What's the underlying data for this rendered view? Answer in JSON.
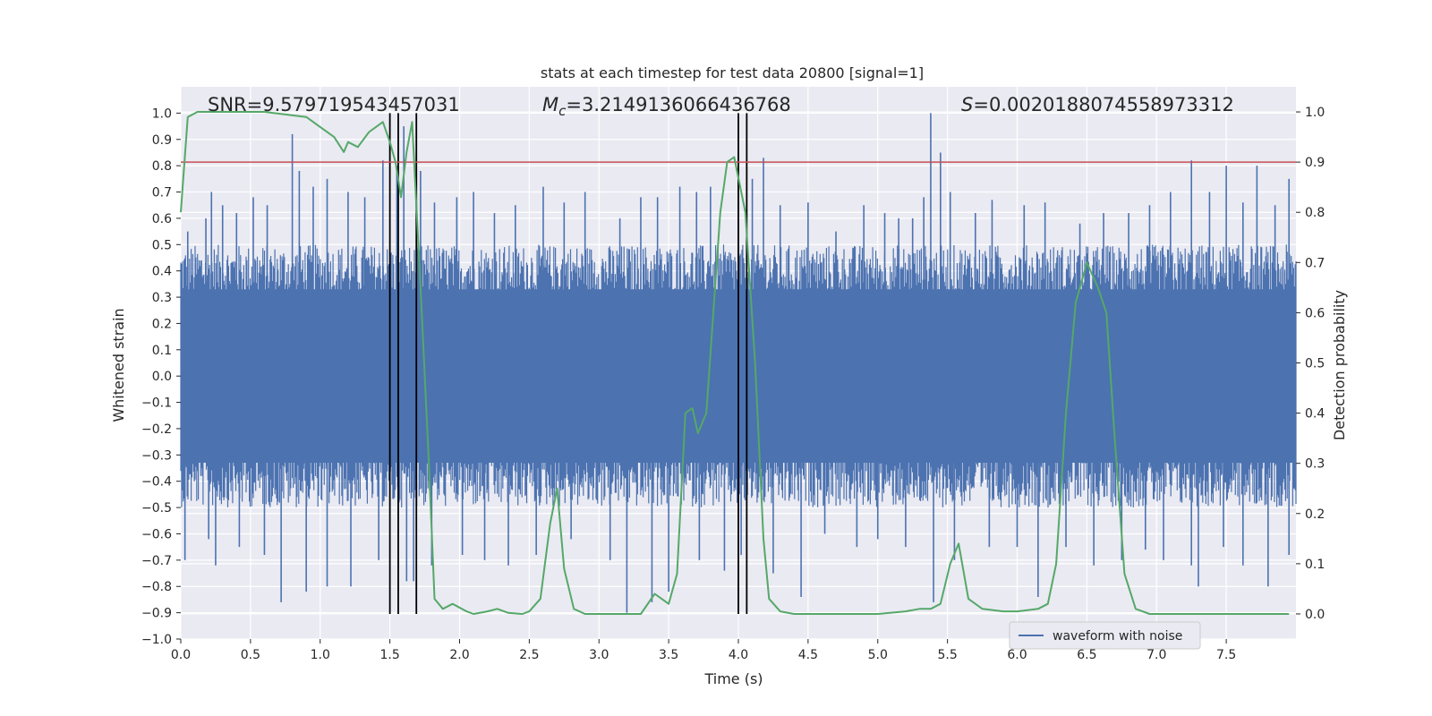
{
  "chart_data": {
    "type": "line",
    "title": "stats at each timestep for test data 20800 [signal=1]",
    "xlabel": "Time (s)",
    "ylabel_left": "Whitened strain",
    "ylabel_right": "Detection probability",
    "xlim": [
      0.0,
      8.0
    ],
    "ylim_left": [
      -1.0,
      1.1
    ],
    "ylim_right": [
      -0.05,
      1.05
    ],
    "x_ticks": [
      "0.0",
      "0.5",
      "1.0",
      "1.5",
      "2.0",
      "2.5",
      "3.0",
      "3.5",
      "4.0",
      "4.5",
      "5.0",
      "5.5",
      "6.0",
      "6.5",
      "7.0",
      "7.5"
    ],
    "y_left_ticks": [
      "1.0",
      "0.9",
      "0.8",
      "0.7",
      "0.6",
      "0.5",
      "0.4",
      "0.3",
      "0.2",
      "0.1",
      "0.0",
      "−0.1",
      "−0.2",
      "−0.3",
      "−0.4",
      "−0.5",
      "−0.6",
      "−0.7",
      "−0.8",
      "−0.9",
      "−1.0"
    ],
    "y_right_ticks": [
      "1.0",
      "0.9",
      "0.8",
      "0.7",
      "0.6",
      "0.5",
      "0.4",
      "0.3",
      "0.2",
      "0.1",
      "0.0"
    ],
    "annotations": {
      "snr": "SNR=9.579719543457031",
      "mc_symbol": "M",
      "mc_sub": "c",
      "mc_value": "=3.2149136066436768",
      "s_symbol": "S",
      "s_value": "=0.0020188074558973312"
    },
    "threshold": {
      "value": 0.9,
      "axis": "right",
      "color": "#c44e52"
    },
    "event_lines": [
      1.5,
      1.56,
      1.69,
      4.0,
      4.06
    ],
    "legend": {
      "label": "waveform with noise",
      "placement": "lower-right"
    },
    "series": [
      {
        "name": "waveform with noise",
        "axis": "left",
        "color": "#4c72b0",
        "noise_envelope": {
          "x_start": 0.0,
          "x_end": 8.0,
          "typical_amplitude": 0.4,
          "max_amplitude": 1.0
        },
        "peaks_positive": [
          [
            0.05,
            0.55
          ],
          [
            0.18,
            0.6
          ],
          [
            0.22,
            0.7
          ],
          [
            0.3,
            0.65
          ],
          [
            0.4,
            0.62
          ],
          [
            0.52,
            0.68
          ],
          [
            0.62,
            0.65
          ],
          [
            0.8,
            0.92
          ],
          [
            0.85,
            0.78
          ],
          [
            0.95,
            0.72
          ],
          [
            1.05,
            0.75
          ],
          [
            1.2,
            0.7
          ],
          [
            1.32,
            0.68
          ],
          [
            1.45,
            0.82
          ],
          [
            1.55,
            0.8
          ],
          [
            1.6,
            0.95
          ],
          [
            1.72,
            0.78
          ],
          [
            1.82,
            0.66
          ],
          [
            1.98,
            0.68
          ],
          [
            2.1,
            0.7
          ],
          [
            2.25,
            0.62
          ],
          [
            2.4,
            0.65
          ],
          [
            2.6,
            0.72
          ],
          [
            2.75,
            0.66
          ],
          [
            2.9,
            0.7
          ],
          [
            3.15,
            0.6
          ],
          [
            3.3,
            0.68
          ],
          [
            3.42,
            0.68
          ],
          [
            3.58,
            0.72
          ],
          [
            3.7,
            0.7
          ],
          [
            3.8,
            0.72
          ],
          [
            4.0,
            0.85
          ],
          [
            4.1,
            0.75
          ],
          [
            4.18,
            0.83
          ],
          [
            4.3,
            0.65
          ],
          [
            4.5,
            0.66
          ],
          [
            4.7,
            0.55
          ],
          [
            4.9,
            0.65
          ],
          [
            5.05,
            0.62
          ],
          [
            5.15,
            0.6
          ],
          [
            5.25,
            0.6
          ],
          [
            5.33,
            0.68
          ],
          [
            5.38,
            1.0
          ],
          [
            5.45,
            0.85
          ],
          [
            5.52,
            0.7
          ],
          [
            5.7,
            0.62
          ],
          [
            5.82,
            0.67
          ],
          [
            6.05,
            0.65
          ],
          [
            6.2,
            0.66
          ],
          [
            6.45,
            0.58
          ],
          [
            6.62,
            0.62
          ],
          [
            6.8,
            0.62
          ],
          [
            6.95,
            0.65
          ],
          [
            7.1,
            0.7
          ],
          [
            7.25,
            0.82
          ],
          [
            7.38,
            0.7
          ],
          [
            7.5,
            0.8
          ],
          [
            7.62,
            0.66
          ],
          [
            7.72,
            0.8
          ],
          [
            7.85,
            0.65
          ],
          [
            7.95,
            0.75
          ]
        ],
        "peaks_negative": [
          [
            0.03,
            -0.7
          ],
          [
            0.2,
            -0.62
          ],
          [
            0.25,
            -0.72
          ],
          [
            0.42,
            -0.65
          ],
          [
            0.6,
            -0.68
          ],
          [
            0.72,
            -0.86
          ],
          [
            0.9,
            -0.82
          ],
          [
            1.05,
            -0.8
          ],
          [
            1.22,
            -0.8
          ],
          [
            1.42,
            -0.7
          ],
          [
            1.62,
            -0.78
          ],
          [
            1.67,
            -0.78
          ],
          [
            1.8,
            -0.72
          ],
          [
            2.02,
            -0.68
          ],
          [
            2.18,
            -0.7
          ],
          [
            2.35,
            -0.72
          ],
          [
            2.55,
            -0.68
          ],
          [
            2.8,
            -0.62
          ],
          [
            3.08,
            -0.7
          ],
          [
            3.2,
            -0.9
          ],
          [
            3.38,
            -0.86
          ],
          [
            3.5,
            -0.82
          ],
          [
            3.72,
            -0.7
          ],
          [
            3.9,
            -0.74
          ],
          [
            4.02,
            -0.68
          ],
          [
            4.25,
            -0.75
          ],
          [
            4.45,
            -0.84
          ],
          [
            4.62,
            -0.6
          ],
          [
            4.85,
            -0.65
          ],
          [
            5.0,
            -0.62
          ],
          [
            5.2,
            -0.65
          ],
          [
            5.4,
            -0.86
          ],
          [
            5.55,
            -0.7
          ],
          [
            5.8,
            -0.65
          ],
          [
            6.0,
            -0.65
          ],
          [
            6.15,
            -0.84
          ],
          [
            6.35,
            -0.65
          ],
          [
            6.55,
            -0.72
          ],
          [
            6.75,
            -0.7
          ],
          [
            6.92,
            -0.66
          ],
          [
            7.05,
            -0.7
          ],
          [
            7.25,
            -0.72
          ],
          [
            7.3,
            -0.8
          ],
          [
            7.48,
            -0.65
          ],
          [
            7.62,
            -0.72
          ],
          [
            7.8,
            -0.8
          ],
          [
            7.95,
            -0.68
          ]
        ]
      },
      {
        "name": "detection probability",
        "axis": "right",
        "color": "#55a868",
        "x": [
          0.0,
          0.05,
          0.12,
          0.3,
          0.6,
          0.9,
          1.0,
          1.1,
          1.17,
          1.2,
          1.27,
          1.35,
          1.4,
          1.45,
          1.5,
          1.54,
          1.58,
          1.62,
          1.66,
          1.72,
          1.78,
          1.82,
          1.88,
          1.95,
          2.05,
          2.1,
          2.2,
          2.27,
          2.35,
          2.45,
          2.5,
          2.58,
          2.65,
          2.7,
          2.75,
          2.82,
          2.9,
          3.0,
          3.3,
          3.4,
          3.45,
          3.5,
          3.56,
          3.62,
          3.67,
          3.71,
          3.77,
          3.82,
          3.87,
          3.92,
          3.97,
          4.05,
          4.12,
          4.18,
          4.22,
          4.3,
          4.4,
          4.5,
          5.0,
          5.2,
          5.3,
          5.38,
          5.45,
          5.52,
          5.58,
          5.65,
          5.75,
          5.9,
          6.0,
          6.15,
          6.22,
          6.28,
          6.35,
          6.42,
          6.5,
          6.58,
          6.64,
          6.7,
          6.77,
          6.85,
          6.95,
          7.2,
          7.5,
          7.8,
          7.95
        ],
        "y": [
          0.8,
          0.99,
          1.0,
          1.0,
          1.0,
          0.99,
          0.97,
          0.95,
          0.92,
          0.94,
          0.93,
          0.96,
          0.97,
          0.98,
          0.94,
          0.9,
          0.83,
          0.92,
          0.98,
          0.65,
          0.3,
          0.03,
          0.01,
          0.02,
          0.005,
          0.0,
          0.005,
          0.01,
          0.002,
          0.0,
          0.005,
          0.03,
          0.18,
          0.25,
          0.09,
          0.01,
          0.0,
          0.0,
          0.0,
          0.04,
          0.03,
          0.02,
          0.08,
          0.4,
          0.41,
          0.36,
          0.4,
          0.6,
          0.8,
          0.9,
          0.91,
          0.8,
          0.5,
          0.15,
          0.03,
          0.005,
          0.0,
          0.0,
          0.0,
          0.005,
          0.01,
          0.01,
          0.02,
          0.1,
          0.14,
          0.03,
          0.01,
          0.005,
          0.005,
          0.01,
          0.02,
          0.1,
          0.4,
          0.62,
          0.7,
          0.65,
          0.6,
          0.35,
          0.08,
          0.01,
          0.0,
          0.0,
          0.0,
          0.0,
          0.0
        ]
      }
    ]
  }
}
